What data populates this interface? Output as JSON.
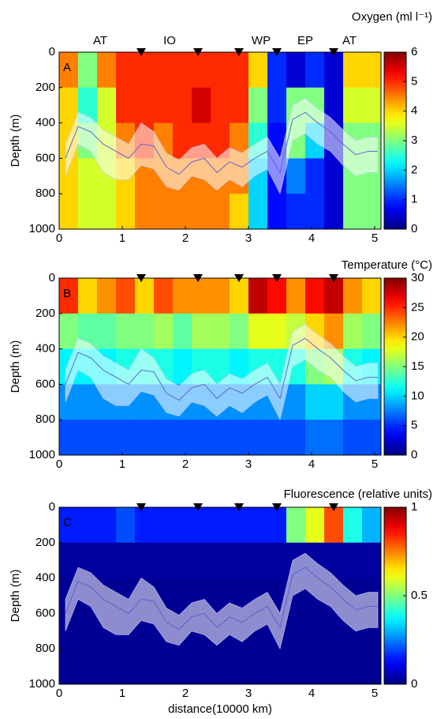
{
  "chart_data": [
    {
      "type": "heatmap",
      "panel_label": "A",
      "colorbar_label": "Oxygen (ml l⁻¹)",
      "ylabel": "Depth (m)",
      "regions": [
        {
          "label": "AT",
          "x": 0.65
        },
        {
          "label": "IO",
          "x": 1.75
        },
        {
          "label": "WP",
          "x": 3.2
        },
        {
          "label": "EP",
          "x": 3.9
        },
        {
          "label": "AT",
          "x": 4.6
        }
      ],
      "stations": [
        1.3,
        2.2,
        2.85,
        3.45,
        4.35
      ],
      "xlim": [
        0,
        5.1
      ],
      "xticks": [
        0,
        1,
        2,
        3,
        4,
        5
      ],
      "ylim": [
        0,
        1000
      ],
      "yticks": [
        0,
        200,
        400,
        600,
        800,
        1000
      ],
      "clim": [
        0,
        6
      ],
      "cticks": [
        0,
        1,
        2,
        3,
        4,
        5,
        6
      ],
      "x_bins": [
        0,
        0.3,
        0.6,
        0.9,
        1.2,
        1.5,
        1.8,
        2.1,
        2.4,
        2.7,
        3.0,
        3.3,
        3.6,
        3.9,
        4.2,
        4.5,
        4.8,
        5.1
      ],
      "y_bins": [
        0,
        200,
        400,
        600,
        800,
        1000
      ],
      "z": [
        [
          4.5,
          3,
          4.5,
          5,
          5,
          5,
          5,
          5,
          5,
          5,
          4,
          1,
          0.5,
          1,
          0.5,
          4,
          4
        ],
        [
          4,
          2.5,
          3.5,
          5,
          5,
          5,
          5,
          5.5,
          5,
          5,
          3,
          1,
          3,
          3,
          0.5,
          3.5,
          3.5
        ],
        [
          4,
          3,
          3.5,
          4.5,
          5,
          4.5,
          5,
          5,
          5,
          4.5,
          2.5,
          0.8,
          3,
          2,
          0.5,
          3,
          3
        ],
        [
          4,
          3.5,
          3.5,
          4,
          4.5,
          4.5,
          4.5,
          4.5,
          4.5,
          4.5,
          2,
          0.8,
          1.5,
          1,
          0.5,
          3,
          3
        ],
        [
          4,
          3.5,
          3.5,
          4,
          4.5,
          4.5,
          4.5,
          4.5,
          4.5,
          4,
          2,
          0.8,
          1,
          1,
          0.5,
          3,
          3
        ]
      ],
      "line": {
        "x": [
          0.1,
          0.3,
          0.5,
          0.7,
          0.9,
          1.1,
          1.3,
          1.5,
          1.7,
          1.9,
          2.1,
          2.3,
          2.5,
          2.7,
          2.9,
          3.1,
          3.3,
          3.5,
          3.7,
          3.9,
          4.1,
          4.3,
          4.5,
          4.7,
          4.9,
          5.05
        ],
        "values": [
          600,
          420,
          450,
          520,
          560,
          600,
          520,
          530,
          650,
          690,
          620,
          600,
          680,
          620,
          650,
          600,
          560,
          680,
          380,
          340,
          400,
          450,
          520,
          580,
          560,
          560
        ],
        "lower": [
          520,
          340,
          370,
          440,
          480,
          520,
          400,
          450,
          570,
          610,
          540,
          520,
          600,
          540,
          570,
          520,
          480,
          600,
          300,
          260,
          320,
          370,
          440,
          500,
          480,
          480
        ],
        "upper": [
          700,
          520,
          560,
          680,
          720,
          720,
          640,
          660,
          760,
          780,
          700,
          720,
          780,
          720,
          760,
          700,
          660,
          800,
          500,
          460,
          520,
          560,
          640,
          700,
          680,
          680
        ]
      }
    },
    {
      "type": "heatmap",
      "panel_label": "B",
      "colorbar_label": "Temperature (°C)",
      "ylabel": "Depth (m)",
      "stations": [
        1.3,
        2.2,
        2.85,
        3.45,
        4.35
      ],
      "xlim": [
        0,
        5.1
      ],
      "xticks": [
        0,
        1,
        2,
        3,
        4,
        5
      ],
      "ylim": [
        0,
        1000
      ],
      "yticks": [
        0,
        200,
        400,
        600,
        800,
        1000
      ],
      "clim": [
        0,
        30
      ],
      "cticks": [
        0,
        5,
        10,
        15,
        20,
        25,
        30
      ],
      "x_bins": [
        0,
        0.3,
        0.6,
        0.9,
        1.2,
        1.5,
        1.8,
        2.1,
        2.4,
        2.7,
        3.0,
        3.3,
        3.6,
        3.9,
        4.2,
        4.5,
        4.8,
        5.1
      ],
      "y_bins": [
        0,
        200,
        400,
        600,
        800,
        1000
      ],
      "z": [
        [
          25,
          20,
          22,
          24,
          20,
          24,
          22,
          22,
          22,
          20,
          28,
          26,
          22,
          26,
          28,
          22,
          20
        ],
        [
          15,
          14,
          14,
          15,
          15,
          16,
          14,
          16,
          16,
          15,
          18,
          18,
          17,
          20,
          22,
          16,
          15
        ],
        [
          11,
          11,
          11,
          12,
          12,
          12,
          11,
          12,
          12,
          11,
          12,
          12,
          12,
          15,
          16,
          12,
          11
        ],
        [
          8,
          8,
          8,
          8,
          8,
          8,
          8,
          8,
          8,
          8,
          8,
          8,
          8,
          10,
          10,
          8,
          8
        ],
        [
          6,
          6,
          6,
          6,
          6,
          6,
          6,
          6,
          6,
          6,
          6,
          6,
          6,
          7,
          7,
          6,
          6
        ]
      ],
      "line": {
        "x": [
          0.1,
          0.3,
          0.5,
          0.7,
          0.9,
          1.1,
          1.3,
          1.5,
          1.7,
          1.9,
          2.1,
          2.3,
          2.5,
          2.7,
          2.9,
          3.1,
          3.3,
          3.5,
          3.7,
          3.9,
          4.1,
          4.3,
          4.5,
          4.7,
          4.9,
          5.05
        ],
        "values": [
          600,
          420,
          450,
          520,
          560,
          600,
          520,
          530,
          650,
          690,
          620,
          600,
          680,
          620,
          650,
          600,
          560,
          680,
          380,
          340,
          400,
          450,
          520,
          580,
          560,
          560
        ],
        "lower": [
          520,
          340,
          370,
          440,
          480,
          520,
          400,
          450,
          570,
          610,
          540,
          520,
          600,
          540,
          570,
          520,
          480,
          600,
          300,
          260,
          320,
          370,
          440,
          500,
          480,
          480
        ],
        "upper": [
          700,
          520,
          560,
          680,
          720,
          720,
          640,
          660,
          760,
          780,
          700,
          720,
          780,
          720,
          760,
          700,
          660,
          800,
          500,
          460,
          520,
          560,
          640,
          700,
          680,
          680
        ]
      }
    },
    {
      "type": "heatmap",
      "panel_label": "C",
      "colorbar_label": "Fluorescence (relative units)",
      "ylabel": "Depth (m)",
      "xlabel": "distance(10000 km)",
      "stations": [
        1.3,
        2.2,
        2.85,
        3.45,
        4.35
      ],
      "xlim": [
        0,
        5.1
      ],
      "xticks": [
        0,
        1,
        2,
        3,
        4,
        5
      ],
      "ylim": [
        0,
        1000
      ],
      "yticks": [
        0,
        200,
        400,
        600,
        800,
        1000
      ],
      "clim": [
        0,
        1
      ],
      "cticks": [
        0,
        0.5,
        1
      ],
      "x_bins": [
        0,
        0.3,
        0.6,
        0.9,
        1.2,
        1.5,
        1.8,
        2.1,
        2.4,
        2.7,
        3.0,
        3.3,
        3.6,
        3.9,
        4.2,
        4.5,
        4.8,
        5.1
      ],
      "y_bins": [
        0,
        200,
        400,
        600,
        800,
        1000
      ],
      "z": [
        [
          0.15,
          0.15,
          0.15,
          0.2,
          0.15,
          0.15,
          0.15,
          0.15,
          0.15,
          0.15,
          0.15,
          0.15,
          0.5,
          0.6,
          0.8,
          0.4,
          0.3
        ],
        [
          0.03,
          0.03,
          0.03,
          0.03,
          0.03,
          0.03,
          0.03,
          0.03,
          0.03,
          0.03,
          0.03,
          0.03,
          0.03,
          0.03,
          0.03,
          0.03,
          0.03
        ],
        [
          0.02,
          0.02,
          0.02,
          0.02,
          0.02,
          0.02,
          0.02,
          0.02,
          0.02,
          0.02,
          0.02,
          0.02,
          0.02,
          0.02,
          0.02,
          0.02,
          0.02
        ],
        [
          0.02,
          0.02,
          0.02,
          0.02,
          0.02,
          0.02,
          0.02,
          0.02,
          0.02,
          0.02,
          0.02,
          0.02,
          0.02,
          0.02,
          0.02,
          0.02,
          0.02
        ],
        [
          0.02,
          0.02,
          0.02,
          0.02,
          0.02,
          0.02,
          0.02,
          0.02,
          0.02,
          0.02,
          0.02,
          0.02,
          0.02,
          0.02,
          0.02,
          0.02,
          0.02
        ]
      ],
      "line": {
        "x": [
          0.1,
          0.3,
          0.5,
          0.7,
          0.9,
          1.1,
          1.3,
          1.5,
          1.7,
          1.9,
          2.1,
          2.3,
          2.5,
          2.7,
          2.9,
          3.1,
          3.3,
          3.5,
          3.7,
          3.9,
          4.1,
          4.3,
          4.5,
          4.7,
          4.9,
          5.05
        ],
        "values": [
          600,
          420,
          450,
          520,
          560,
          600,
          520,
          530,
          650,
          690,
          620,
          600,
          680,
          620,
          650,
          600,
          560,
          680,
          380,
          340,
          400,
          450,
          520,
          580,
          560,
          560
        ],
        "lower": [
          520,
          340,
          370,
          440,
          480,
          520,
          400,
          450,
          570,
          610,
          540,
          520,
          600,
          540,
          570,
          520,
          480,
          600,
          300,
          260,
          320,
          370,
          440,
          500,
          480,
          480
        ],
        "upper": [
          700,
          520,
          560,
          680,
          720,
          720,
          640,
          660,
          760,
          780,
          700,
          720,
          780,
          720,
          760,
          700,
          660,
          800,
          500,
          460,
          520,
          560,
          640,
          700,
          680,
          680
        ]
      }
    }
  ]
}
